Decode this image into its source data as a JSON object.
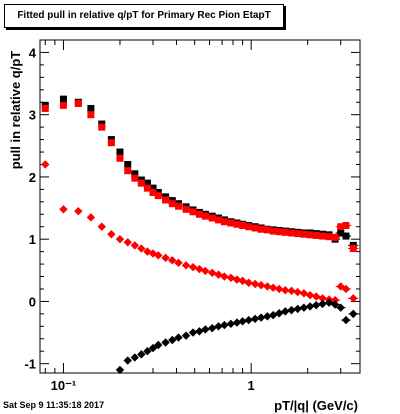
{
  "title": "Fitted pull in relative q/pT for Primary Rec Pion EtapT",
  "timestamp": "Sat Sep  9 11:35:18 2017",
  "chart_data": {
    "type": "scatter",
    "title": "Fitted pull in relative q/pT for Primary Rec Pion EtapT",
    "xlabel": "pT/|q| (GeV/c)",
    "ylabel": "pull in relative q/pT",
    "xscale": "log",
    "xlim": [
      0.075,
      3.8
    ],
    "ylim": [
      -1.15,
      4.2
    ],
    "x_tick_labels": [
      "10⁻¹",
      "1"
    ],
    "y_tick_labels": [
      "-1",
      "0",
      "1",
      "2",
      "3",
      "4"
    ],
    "grid": false,
    "legend": "none",
    "series": [
      {
        "color": "#000000",
        "marker": "square",
        "x": [
          0.08,
          0.1,
          0.12,
          0.14,
          0.16,
          0.18,
          0.2,
          0.22,
          0.24,
          0.26,
          0.28,
          0.3,
          0.32,
          0.35,
          0.38,
          0.41,
          0.45,
          0.49,
          0.53,
          0.57,
          0.62,
          0.67,
          0.72,
          0.78,
          0.84,
          0.9,
          0.97,
          1.05,
          1.13,
          1.22,
          1.31,
          1.41,
          1.52,
          1.64,
          1.77,
          1.91,
          2.06,
          2.22,
          2.4,
          2.6,
          2.8,
          3.0,
          3.2,
          3.5
        ],
        "y": [
          3.15,
          3.25,
          3.2,
          3.1,
          2.85,
          2.6,
          2.4,
          2.2,
          2.05,
          1.95,
          1.9,
          1.82,
          1.75,
          1.68,
          1.62,
          1.57,
          1.52,
          1.47,
          1.43,
          1.4,
          1.37,
          1.34,
          1.31,
          1.28,
          1.26,
          1.24,
          1.22,
          1.2,
          1.18,
          1.16,
          1.15,
          1.14,
          1.13,
          1.12,
          1.11,
          1.1,
          1.1,
          1.09,
          1.08,
          1.07,
          1.0,
          1.1,
          1.05,
          0.9
        ]
      },
      {
        "color": "#ff0000",
        "marker": "square",
        "x": [
          0.08,
          0.1,
          0.12,
          0.14,
          0.16,
          0.18,
          0.2,
          0.22,
          0.24,
          0.26,
          0.28,
          0.3,
          0.32,
          0.35,
          0.38,
          0.41,
          0.45,
          0.49,
          0.53,
          0.57,
          0.62,
          0.67,
          0.72,
          0.78,
          0.84,
          0.9,
          0.97,
          1.05,
          1.13,
          1.22,
          1.31,
          1.41,
          1.52,
          1.64,
          1.77,
          1.91,
          2.06,
          2.22,
          2.4,
          2.6,
          2.8,
          3.0,
          3.2,
          3.5
        ],
        "y": [
          3.1,
          3.15,
          3.18,
          3.0,
          2.8,
          2.55,
          2.3,
          2.1,
          1.98,
          1.9,
          1.82,
          1.75,
          1.7,
          1.63,
          1.57,
          1.53,
          1.48,
          1.44,
          1.4,
          1.37,
          1.34,
          1.31,
          1.28,
          1.26,
          1.24,
          1.22,
          1.2,
          1.18,
          1.16,
          1.15,
          1.13,
          1.12,
          1.11,
          1.1,
          1.09,
          1.08,
          1.07,
          1.06,
          1.05,
          1.04,
          1.03,
          1.2,
          1.22,
          0.85
        ]
      },
      {
        "color": "#ff0000",
        "marker": "diamond",
        "x": [
          0.08,
          0.1,
          0.12,
          0.14,
          0.16,
          0.18,
          0.2,
          0.22,
          0.24,
          0.26,
          0.28,
          0.3,
          0.32,
          0.35,
          0.38,
          0.41,
          0.45,
          0.49,
          0.53,
          0.57,
          0.62,
          0.67,
          0.72,
          0.78,
          0.84,
          0.9,
          0.97,
          1.05,
          1.13,
          1.22,
          1.31,
          1.41,
          1.52,
          1.64,
          1.77,
          1.91,
          2.06,
          2.22,
          2.4,
          2.6,
          2.8,
          3.0,
          3.2,
          3.5
        ],
        "y": [
          2.2,
          1.48,
          1.45,
          1.35,
          1.2,
          1.08,
          1.0,
          0.95,
          0.9,
          0.85,
          0.8,
          0.77,
          0.74,
          0.7,
          0.66,
          0.62,
          0.58,
          0.55,
          0.52,
          0.49,
          0.46,
          0.43,
          0.4,
          0.38,
          0.35,
          0.33,
          0.3,
          0.28,
          0.26,
          0.24,
          0.22,
          0.2,
          0.18,
          0.17,
          0.15,
          0.13,
          0.1,
          0.08,
          0.05,
          0.03,
          0.02,
          0.24,
          0.2,
          0.05
        ]
      },
      {
        "color": "#000000",
        "marker": "diamond",
        "x": [
          0.2,
          0.22,
          0.24,
          0.26,
          0.28,
          0.3,
          0.32,
          0.35,
          0.38,
          0.41,
          0.45,
          0.49,
          0.53,
          0.57,
          0.62,
          0.67,
          0.72,
          0.78,
          0.84,
          0.9,
          0.97,
          1.05,
          1.13,
          1.22,
          1.31,
          1.41,
          1.52,
          1.64,
          1.77,
          1.91,
          2.06,
          2.22,
          2.4,
          2.6,
          2.8,
          3.0,
          3.2,
          3.5
        ],
        "y": [
          -1.1,
          -0.95,
          -0.9,
          -0.85,
          -0.8,
          -0.75,
          -0.7,
          -0.66,
          -0.62,
          -0.58,
          -0.55,
          -0.5,
          -0.48,
          -0.45,
          -0.43,
          -0.4,
          -0.38,
          -0.36,
          -0.34,
          -0.32,
          -0.3,
          -0.28,
          -0.26,
          -0.24,
          -0.22,
          -0.19,
          -0.16,
          -0.14,
          -0.12,
          -0.1,
          -0.08,
          -0.06,
          -0.04,
          -0.02,
          -0.05,
          -0.1,
          -0.3,
          -0.2
        ]
      }
    ]
  }
}
